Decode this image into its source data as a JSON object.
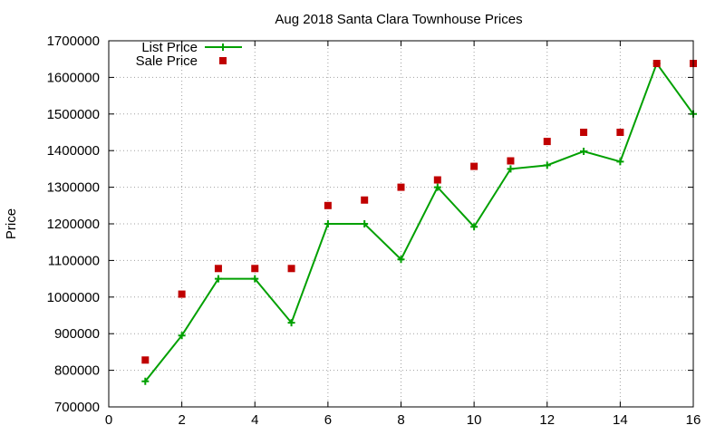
{
  "chart_data": {
    "type": "line",
    "title": "Aug 2018 Santa Clara Townhouse Prices",
    "xlabel": "",
    "ylabel": "Price",
    "xlim": [
      0,
      16
    ],
    "ylim": [
      700000,
      1700000
    ],
    "xticks": [
      0,
      2,
      4,
      6,
      8,
      10,
      12,
      14,
      16
    ],
    "yticks": [
      700000,
      800000,
      900000,
      1000000,
      1100000,
      1200000,
      1300000,
      1400000,
      1500000,
      1600000,
      1700000
    ],
    "xtick_labels": [
      "0",
      "2",
      "4",
      "6",
      "8",
      "10",
      "12",
      "14",
      "16"
    ],
    "ytick_labels": [
      "700000",
      "800000",
      "900000",
      "1000000",
      "1100000",
      "1200000",
      "1300000",
      "1400000",
      "1500000",
      "1600000",
      "1700000"
    ],
    "grid": true,
    "legend_position": "top-left",
    "x": [
      1,
      2,
      3,
      4,
      5,
      6,
      7,
      8,
      9,
      10,
      11,
      12,
      13,
      14,
      15,
      16
    ],
    "series": [
      {
        "name": "List Price",
        "style": "linespoints",
        "marker": "plus",
        "color": "#00a000",
        "values": [
          770000,
          895000,
          1050000,
          1050000,
          930000,
          1200000,
          1200000,
          1103000,
          1300000,
          1192000,
          1350000,
          1360000,
          1398000,
          1370000,
          1638000,
          1500000
        ]
      },
      {
        "name": "Sale Price",
        "style": "points",
        "marker": "square",
        "color": "#c00000",
        "values": [
          828000,
          1008000,
          1078000,
          1078000,
          1078000,
          1250000,
          1265000,
          1300000,
          1320000,
          1357000,
          1372000,
          1425000,
          1450000,
          1450000,
          1638000,
          1638000
        ]
      }
    ]
  }
}
